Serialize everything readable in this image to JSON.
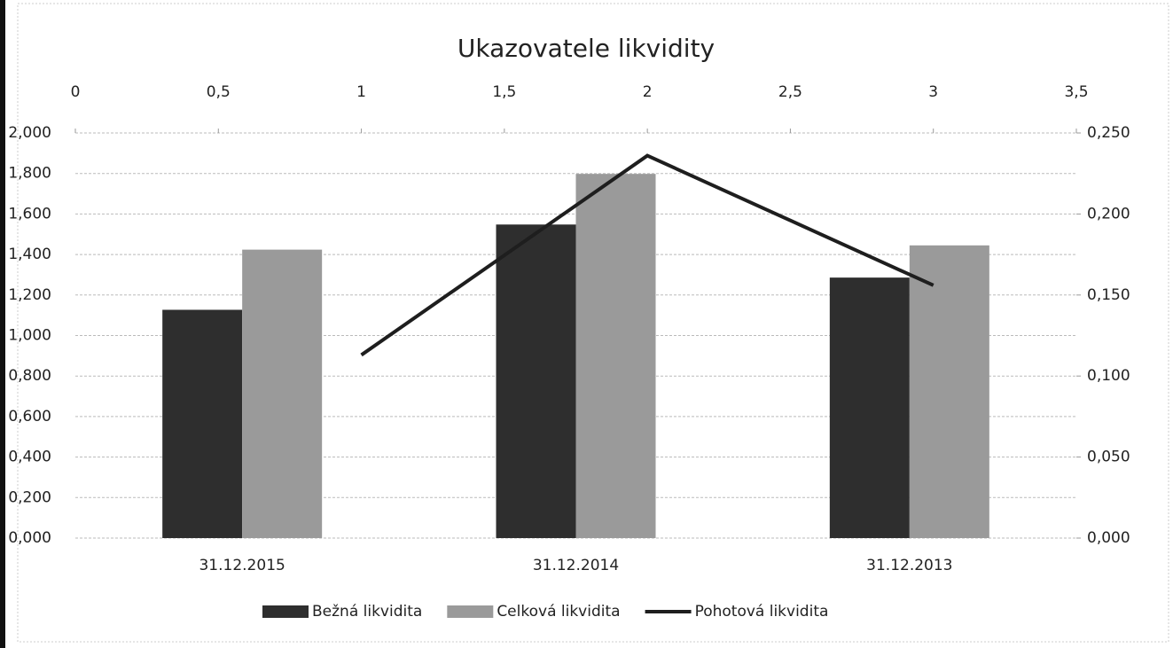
{
  "chart_data": {
    "type": "bar",
    "title": "Ukazovatele likvidity",
    "categories": [
      "31.12.2015",
      "31.12.2014",
      "31.12.2013"
    ],
    "series": [
      {
        "name": "Bežná likvidita",
        "color": "#2e2e2e",
        "values": [
          1.127,
          1.548,
          1.286
        ]
      },
      {
        "name": "Celková likvidita",
        "color": "#9a9a9a",
        "values": [
          1.424,
          1.798,
          1.445
        ]
      },
      {
        "name": "Pohotová likvidita",
        "type": "line",
        "axis": "y2",
        "color": "#1e1e1e",
        "x": [
          1,
          2,
          3
        ],
        "values": [
          0.113,
          0.236,
          0.156
        ]
      }
    ],
    "ylim": [
      0,
      2
    ],
    "yticks": [
      {
        "value": 0,
        "label": "0,000"
      },
      {
        "value": 0.2,
        "label": "0,200"
      },
      {
        "value": 0.4,
        "label": "0,400"
      },
      {
        "value": 0.6,
        "label": "0,600"
      },
      {
        "value": 0.8,
        "label": "0,800"
      },
      {
        "value": 1,
        "label": "1,000"
      },
      {
        "value": 1.2,
        "label": "1,200"
      },
      {
        "value": 1.4,
        "label": "1,400"
      },
      {
        "value": 1.6,
        "label": "1,600"
      },
      {
        "value": 1.8,
        "label": "1,800"
      },
      {
        "value": 2,
        "label": "2,000"
      }
    ],
    "y2lim": [
      0,
      0.25
    ],
    "y2ticks": [
      {
        "value": 0,
        "label": "0,000"
      },
      {
        "value": 0.05,
        "label": "0,050"
      },
      {
        "value": 0.1,
        "label": "0,100"
      },
      {
        "value": 0.15,
        "label": "0,150"
      },
      {
        "value": 0.2,
        "label": "0,200"
      },
      {
        "value": 0.25,
        "label": "0,250"
      }
    ],
    "x2lim": [
      0,
      3.5
    ],
    "x2ticks": [
      0,
      {
        "value": 0.5,
        "label": "0,5"
      },
      1,
      {
        "value": 1.5,
        "label": "1,5"
      },
      2,
      {
        "value": 2.5,
        "label": "2,5"
      },
      3,
      {
        "value": 3.5,
        "label": "3,5"
      }
    ],
    "grid": true,
    "legend": "bottom"
  }
}
